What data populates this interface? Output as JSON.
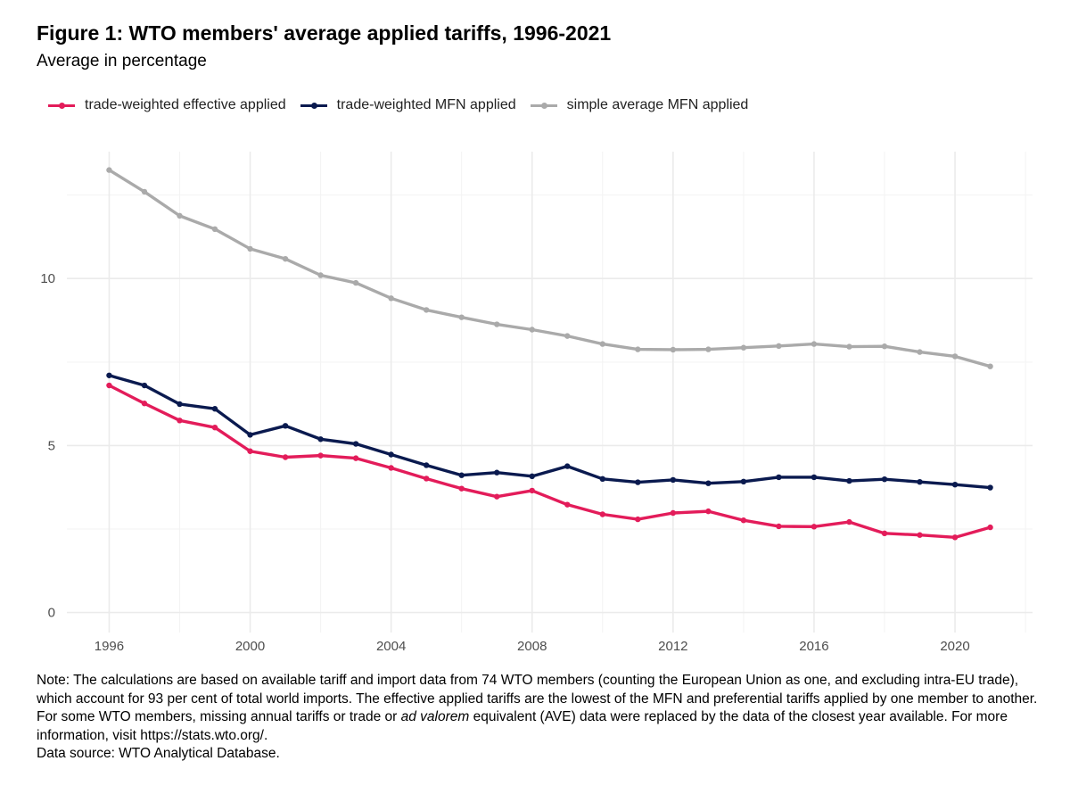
{
  "chart_data": {
    "type": "line",
    "title": "Figure 1: WTO members' average applied tariffs, 1996-2021",
    "subtitle": "Average in percentage",
    "xlabel": "",
    "ylabel": "",
    "x": [
      1996,
      1997,
      1998,
      1999,
      2000,
      2001,
      2002,
      2003,
      2004,
      2005,
      2006,
      2007,
      2008,
      2009,
      2010,
      2011,
      2012,
      2013,
      2014,
      2015,
      2016,
      2017,
      2018,
      2019,
      2020,
      2021
    ],
    "xlim": [
      1994.8,
      2022.2
    ],
    "ylim": [
      -0.6,
      13.8
    ],
    "x_ticks": [
      1996,
      2000,
      2004,
      2008,
      2012,
      2016,
      2020
    ],
    "y_ticks": [
      0,
      5,
      10
    ],
    "grid": true,
    "legend_position": "top-left",
    "series": [
      {
        "name": "trade-weighted effective applied",
        "color": "#e31c5a",
        "values": [
          6.8,
          6.26,
          5.75,
          5.54,
          4.83,
          4.65,
          4.7,
          4.62,
          4.33,
          4.01,
          3.71,
          3.47,
          3.65,
          3.23,
          2.94,
          2.79,
          2.98,
          3.03,
          2.76,
          2.58,
          2.57,
          2.71,
          2.37,
          2.32,
          2.25,
          2.55
        ]
      },
      {
        "name": "trade-weighted MFN applied",
        "color": "#0a1a4f",
        "values": [
          7.1,
          6.8,
          6.24,
          6.1,
          5.32,
          5.59,
          5.19,
          5.05,
          4.73,
          4.41,
          4.11,
          4.19,
          4.08,
          4.38,
          4.0,
          3.9,
          3.97,
          3.87,
          3.92,
          4.05,
          4.05,
          3.94,
          3.99,
          3.91,
          3.83,
          3.74
        ]
      },
      {
        "name": "simple average MFN applied",
        "color": "#aaaaaa",
        "values": [
          13.25,
          12.6,
          11.88,
          11.48,
          10.89,
          10.59,
          10.1,
          9.87,
          9.41,
          9.06,
          8.84,
          8.63,
          8.47,
          8.28,
          8.04,
          7.88,
          7.87,
          7.88,
          7.93,
          7.98,
          8.04,
          7.96,
          7.97,
          7.8,
          7.67,
          7.37
        ]
      }
    ]
  },
  "note": {
    "line1": "Note: The calculations are based on available tariff and import data from 74 WTO members (counting the European Union as one, and excluding intra-EU trade), which account for 93 per cent of total world imports. The effective applied tariffs are the lowest of the MFN and preferential tariffs applied by one member to another. For some WTO members, missing annual tariffs or trade or ",
    "italic": "ad valorem",
    "line2": " equivalent (AVE) data were replaced by the data of the closest year available. For more information, visit https://stats.wto.org/.",
    "source": "Data source: WTO Analytical Database."
  }
}
